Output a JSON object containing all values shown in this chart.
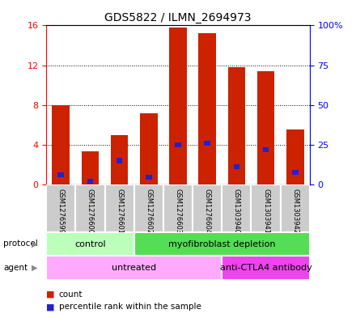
{
  "title": "GDS5822 / ILMN_2694973",
  "samples": [
    "GSM1276599",
    "GSM1276600",
    "GSM1276601",
    "GSM1276602",
    "GSM1276603",
    "GSM1276604",
    "GSM1303940",
    "GSM1303941",
    "GSM1303942"
  ],
  "counts": [
    8.0,
    3.3,
    5.0,
    7.2,
    15.8,
    15.2,
    11.8,
    11.4,
    5.5
  ],
  "percentile_ranks_pct": [
    6.0,
    2.0,
    15.0,
    4.5,
    25.0,
    26.0,
    11.0,
    22.0,
    7.5
  ],
  "ylim_left": [
    0,
    16
  ],
  "yticks_left": [
    0,
    4,
    8,
    12,
    16
  ],
  "yticks_right_pct": [
    0,
    25,
    50,
    75,
    100
  ],
  "ytick_labels_right": [
    "0",
    "25",
    "50",
    "75",
    "100%"
  ],
  "bar_color": "#cc2200",
  "percentile_color": "#2222cc",
  "bar_width": 0.6,
  "protocol_groups": [
    {
      "label": "control",
      "start": 0,
      "end": 3,
      "color": "#bbffbb"
    },
    {
      "label": "myofibroblast depletion",
      "start": 3,
      "end": 9,
      "color": "#55dd55"
    }
  ],
  "agent_groups": [
    {
      "label": "untreated",
      "start": 0,
      "end": 6,
      "color": "#ffaaff"
    },
    {
      "label": "anti-CTLA4 antibody",
      "start": 6,
      "end": 9,
      "color": "#ee44ee"
    }
  ],
  "background_color": "#ffffff",
  "sample_bg_color": "#cccccc",
  "legend_count_color": "#cc2200",
  "legend_percentile_color": "#2222cc"
}
